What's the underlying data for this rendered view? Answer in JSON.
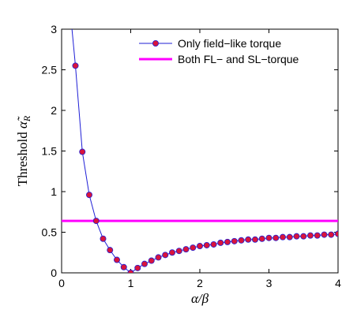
{
  "chart_data": {
    "type": "line",
    "xlabel": "α/β",
    "ylabel_main": "Threshold ",
    "ylabel_symbol": "α̃",
    "ylabel_sub": "R",
    "xlim": [
      0,
      4
    ],
    "ylim": [
      0,
      3
    ],
    "xticks": [
      "0",
      "1",
      "2",
      "3",
      "4"
    ],
    "yticks": [
      "0",
      "0.5",
      "1",
      "1.5",
      "2",
      "2.5",
      "3"
    ],
    "legend_position": "top-right",
    "series": [
      {
        "name": "Only field−like torque",
        "line_color": "#1f1fd6",
        "marker_color": "#d8143c",
        "marker": "circle",
        "x": [
          0.2,
          0.3,
          0.4,
          0.5,
          0.6,
          0.7,
          0.8,
          0.9,
          1.0,
          1.1,
          1.2,
          1.3,
          1.4,
          1.5,
          1.6,
          1.7,
          1.8,
          1.9,
          2.0,
          2.1,
          2.2,
          2.3,
          2.4,
          2.5,
          2.6,
          2.7,
          2.8,
          2.9,
          3.0,
          3.1,
          3.2,
          3.3,
          3.4,
          3.5,
          3.6,
          3.7,
          3.8,
          3.9,
          4.0
        ],
        "y": [
          2.55,
          1.49,
          0.96,
          0.64,
          0.42,
          0.28,
          0.16,
          0.07,
          0.0,
          0.06,
          0.11,
          0.15,
          0.19,
          0.22,
          0.25,
          0.27,
          0.29,
          0.31,
          0.33,
          0.34,
          0.35,
          0.37,
          0.38,
          0.39,
          0.4,
          0.41,
          0.41,
          0.42,
          0.43,
          0.43,
          0.44,
          0.44,
          0.45,
          0.45,
          0.46,
          0.46,
          0.47,
          0.47,
          0.48
        ],
        "curve_start": [
          0.15,
          3.0
        ]
      },
      {
        "name": "Both FL− and SL−torque",
        "line_color": "#ff00ff",
        "y_constant": 0.64
      }
    ]
  }
}
